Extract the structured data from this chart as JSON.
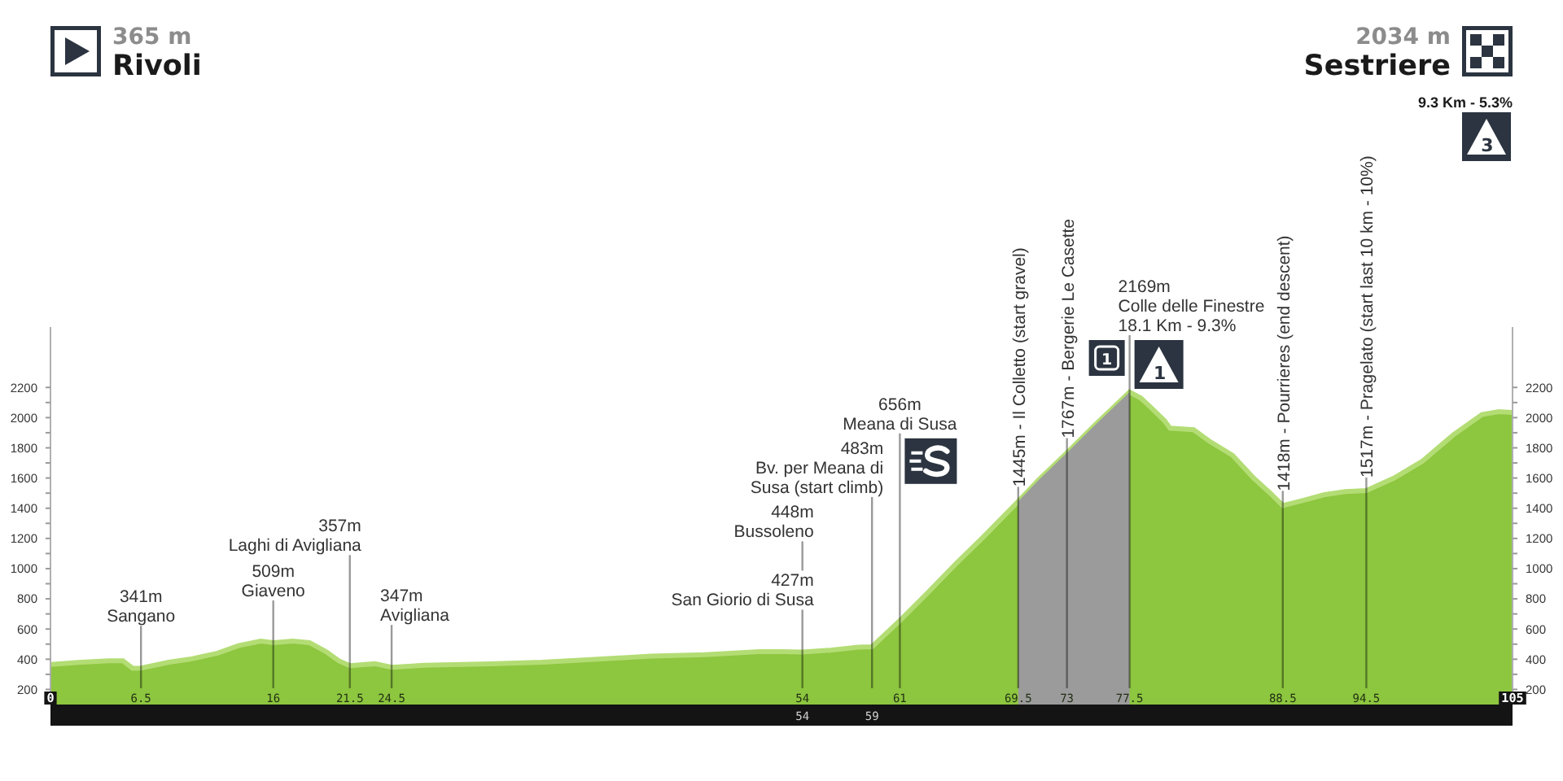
{
  "chart_data": {
    "type": "area",
    "xlim": [
      0,
      105
    ],
    "xticks": [
      0,
      6.5,
      16,
      21.5,
      24.5,
      54,
      61,
      69.5,
      73,
      77.5,
      88.5,
      94.5,
      105
    ],
    "x2lim": [
      0,
      105
    ],
    "x2ticks": [
      54,
      59
    ],
    "ylim": [
      100,
      2600
    ],
    "yticks": [
      200,
      {
        "value": 300,
        "label": null
      },
      400,
      {
        "value": 500,
        "label": null
      },
      600,
      {
        "value": 700,
        "label": null
      },
      800,
      {
        "value": 900,
        "label": null
      },
      1000,
      {
        "value": 1100,
        "label": null
      },
      1200,
      {
        "value": 1300,
        "label": null
      },
      1400,
      {
        "value": 1500,
        "label": null
      },
      1600,
      {
        "value": 1700,
        "label": null
      },
      1800,
      {
        "value": 1900,
        "label": null
      },
      2000,
      {
        "value": 2100,
        "label": null
      },
      2200
    ],
    "y2lim": [
      100,
      2600
    ],
    "y2ticks": [
      200,
      {
        "value": 300,
        "label": null
      },
      400,
      {
        "value": 500,
        "label": null
      },
      600,
      {
        "value": 700,
        "label": null
      },
      800,
      {
        "value": 900,
        "label": null
      },
      1000,
      {
        "value": 1100,
        "label": null
      },
      1200,
      {
        "value": 1300,
        "label": null
      },
      1400,
      {
        "value": 1500,
        "label": null
      },
      1600,
      {
        "value": 1700,
        "label": null
      },
      1800,
      {
        "value": 1900,
        "label": null
      },
      2000,
      {
        "value": 2100,
        "label": null
      },
      2200
    ],
    "series": [
      {
        "color": "#8dc63f",
        "x": [
          0,
          2.2,
          4.2,
          5.2,
          5.9,
          6.5,
          8.5,
          10,
          12,
          13.5,
          15.1,
          16,
          17.4,
          18.6,
          19.8,
          20.7,
          21.5,
          23.3,
          24.5,
          26.8,
          31.5,
          35.3,
          39.3,
          43.1,
          47,
          50.9,
          52.5,
          54,
          56,
          58,
          59,
          61,
          63,
          65,
          67,
          69.5,
          71,
          73,
          75,
          77.5,
          78.3,
          79,
          80,
          80.4,
          82.1,
          83.3,
          84.9,
          86.4,
          87.6,
          88.5,
          89.9,
          91.5,
          93,
          94.5,
          96.5,
          98.5,
          100.8,
          102.8,
          104,
          105
        ],
        "values": [
          365,
          380,
          390,
          390,
          340,
          341,
          380,
          400,
          440,
          490,
          520,
          509,
          520,
          510,
          450,
          390,
          357,
          370,
          347,
          360,
          370,
          380,
          400,
          420,
          430,
          450,
          450,
          448,
          460,
          480,
          483,
          656,
          840,
          1030,
          1210,
          1445,
          1590,
          1767,
          1950,
          2169,
          2130,
          2070,
          1980,
          1930,
          1920,
          1840,
          1750,
          1600,
          1500,
          1418,
          1450,
          1490,
          1510,
          1517,
          1600,
          1710,
          1890,
          2020,
          2040,
          2034
        ]
      },
      {
        "color": "#9b9b9b",
        "x": [
          69.5,
          71,
          73,
          75,
          77.5
        ],
        "values": [
          1445,
          1590,
          1767,
          1950,
          2169
        ]
      }
    ],
    "ref_lines": [
      {
        "axis": "x",
        "value": 6.5,
        "label": "341m\nSangano"
      },
      {
        "axis": "x",
        "value": 16,
        "label": "509m\nGiaveno"
      },
      {
        "axis": "x",
        "value": 21.5,
        "label": "357m\nLaghi di Avigliana"
      },
      {
        "axis": "x",
        "value": 24.5,
        "label": "347m\nAvigliana"
      },
      {
        "axis": "x",
        "value": 54,
        "label": "427m\nSan Giorio di Susa"
      },
      {
        "axis": "x",
        "value": 54,
        "label": "448m\nBussoleno"
      },
      {
        "axis": "x",
        "value": 59,
        "label": "483m\nBv. per Meana di\nSusa (start climb)"
      },
      {
        "axis": "x",
        "value": 61,
        "label": "656m\nMeana di Susa"
      },
      {
        "axis": "x",
        "value": 69.5,
        "label": "1445m - Il Colletto (start gravel)"
      },
      {
        "axis": "x",
        "value": 73,
        "label": "1767m - Bergerie Le Casette"
      },
      {
        "axis": "x",
        "value": 77.5,
        "label": "2169m\nColle delle Finestre\n18.1 Km - 9.3%"
      },
      {
        "axis": "x",
        "value": 88.5,
        "label": "1418m - Pourrieres (end descent)"
      },
      {
        "axis": "x",
        "value": 94.5,
        "label": "1517m - Pragelato (start last 10 km - 10%)"
      }
    ],
    "annotations": [
      "365 m\nRivoli",
      "2034 m\nSestriere",
      "1",
      "1",
      "9.3 Km - 5.3%",
      "3"
    ]
  }
}
